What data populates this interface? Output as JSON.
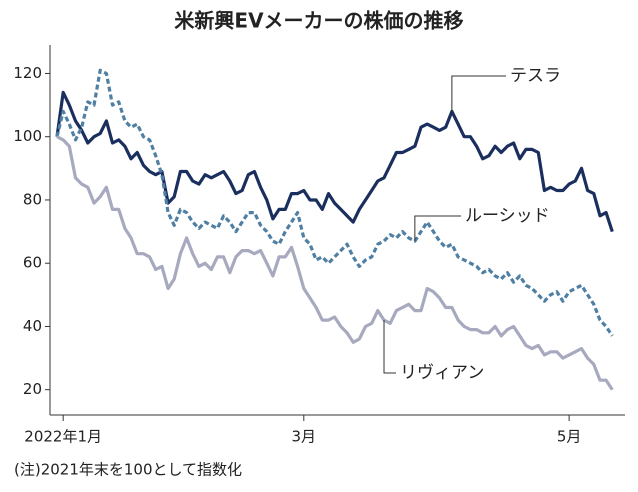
{
  "chart_data": {
    "type": "line",
    "title": "米新興EVメーカーの株価の推移",
    "note": "(注)2021年末を100として指数化",
    "categories": [
      null,
      "2022年1月",
      null,
      null,
      null,
      null,
      null,
      null,
      null,
      null,
      null,
      null,
      null,
      null,
      null,
      null,
      null,
      null,
      null,
      null,
      null,
      null,
      null,
      null,
      null,
      null,
      null,
      null,
      null,
      null,
      null,
      null,
      null,
      null,
      null,
      null,
      null,
      null,
      null,
      null,
      "3月",
      null,
      null,
      null,
      null,
      null,
      null,
      null,
      null,
      null,
      null,
      null,
      null,
      null,
      null,
      null,
      null,
      null,
      null,
      null,
      null,
      null,
      null,
      null,
      null,
      null,
      null,
      null,
      null,
      null,
      null,
      null,
      null,
      null,
      null,
      null,
      null,
      null,
      null,
      null,
      null,
      null,
      null,
      "5月",
      null,
      null,
      null,
      null,
      null,
      null,
      null
    ],
    "series": [
      {
        "name": "テスラ",
        "color": "#1b2f5e",
        "dashed": false,
        "values": [
          100,
          114,
          110,
          105,
          102,
          98,
          100,
          101,
          105,
          98,
          99,
          97,
          93,
          95,
          91,
          89,
          88,
          89,
          79,
          81,
          89,
          89,
          86,
          85,
          88,
          87,
          88,
          89,
          86,
          82,
          83,
          88,
          89,
          84,
          80,
          74,
          77,
          77,
          82,
          82,
          83,
          80,
          80,
          77,
          82,
          79,
          77,
          75,
          73,
          77,
          80,
          83,
          86,
          87,
          91,
          95,
          95,
          96,
          97,
          103,
          104,
          103,
          102,
          103,
          108,
          104,
          100,
          100,
          97,
          93,
          94,
          97,
          95,
          97,
          98,
          93,
          96,
          96,
          95,
          83,
          84,
          83,
          83,
          85,
          86,
          90,
          83,
          82,
          75,
          76,
          70
        ]
      },
      {
        "name": "ルーシッド",
        "color": "#4f7fa3",
        "dashed": true,
        "values": [
          100,
          108,
          104,
          99,
          103,
          111,
          110,
          121,
          120,
          110,
          111,
          105,
          103,
          104,
          100,
          99,
          94,
          88,
          76,
          72,
          77,
          76,
          73,
          71,
          73,
          72,
          71,
          75,
          73,
          70,
          73,
          76,
          76,
          72,
          70,
          67,
          66,
          70,
          73,
          76,
          68,
          66,
          61,
          62,
          60,
          62,
          64,
          66,
          62,
          59,
          61,
          62,
          66,
          67,
          69,
          68,
          70,
          68,
          67,
          70,
          73,
          70,
          67,
          65,
          66,
          62,
          61,
          60,
          59,
          57,
          58,
          56,
          55,
          57,
          54,
          56,
          53,
          52,
          50,
          48,
          50,
          51,
          48,
          51,
          52,
          53,
          50,
          47,
          42,
          40,
          37
        ]
      },
      {
        "name": "リヴィアン",
        "color": "#a7a9bf",
        "dashed": false,
        "values": [
          100,
          99,
          97,
          87,
          85,
          84,
          79,
          81,
          84,
          77,
          77,
          71,
          68,
          63,
          63,
          62,
          58,
          59,
          52,
          55,
          63,
          68,
          63,
          59,
          60,
          58,
          62,
          62,
          57,
          62,
          64,
          64,
          63,
          64,
          60,
          56,
          62,
          62,
          65,
          59,
          52,
          49,
          46,
          42,
          42,
          43,
          40,
          38,
          35,
          36,
          40,
          41,
          45,
          42,
          41,
          45,
          46,
          47,
          45,
          45,
          52,
          51,
          49,
          46,
          46,
          42,
          40,
          39,
          39,
          38,
          38,
          40,
          37,
          39,
          40,
          37,
          34,
          33,
          34,
          31,
          32,
          32,
          30,
          31,
          32,
          33,
          30,
          28,
          23,
          23,
          20
        ]
      }
    ],
    "ylim": [
      12,
      129
    ],
    "yticks": [
      20,
      40,
      60,
      80,
      100,
      120
    ],
    "grid": false
  }
}
